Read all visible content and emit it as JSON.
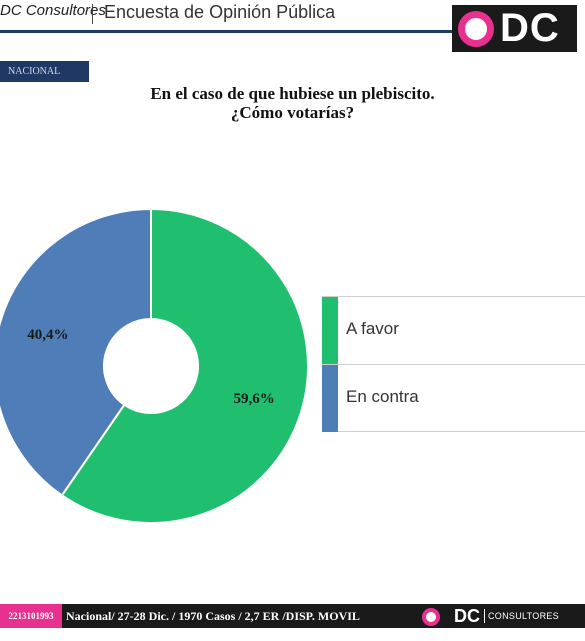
{
  "header": {
    "brand": "DC Consultores",
    "title": "Encuesta de Opinión Pública",
    "logo_text": "DC"
  },
  "badge": "NACIONAL",
  "colors": {
    "favor": "#1fbf6f",
    "contra": "#4f7db8",
    "navy": "#1f3864",
    "pink": "#e8318f"
  },
  "chart_data": {
    "type": "pie",
    "title": "En el caso de que hubiese un plebiscito. ¿Cómo votarías?",
    "title_lines": [
      "En el caso de que hubiese un plebiscito.",
      "¿Cómo votarías?"
    ],
    "donut": true,
    "legend_position": "right",
    "slices": [
      {
        "label": "A favor",
        "value": 59.6,
        "display": "59,6%",
        "color": "#1fbf6f"
      },
      {
        "label": "En contra",
        "value": 40.4,
        "display": "40,4%",
        "color": "#4f7db8"
      }
    ]
  },
  "footer": {
    "phone": "2213101993",
    "info": "Nacional/ 27-28 Dic. / 1970 Casos  / 2,7 ER /DISP. MOVIL",
    "logo_text": "DC",
    "logo_sub": "CONSULTORES"
  }
}
